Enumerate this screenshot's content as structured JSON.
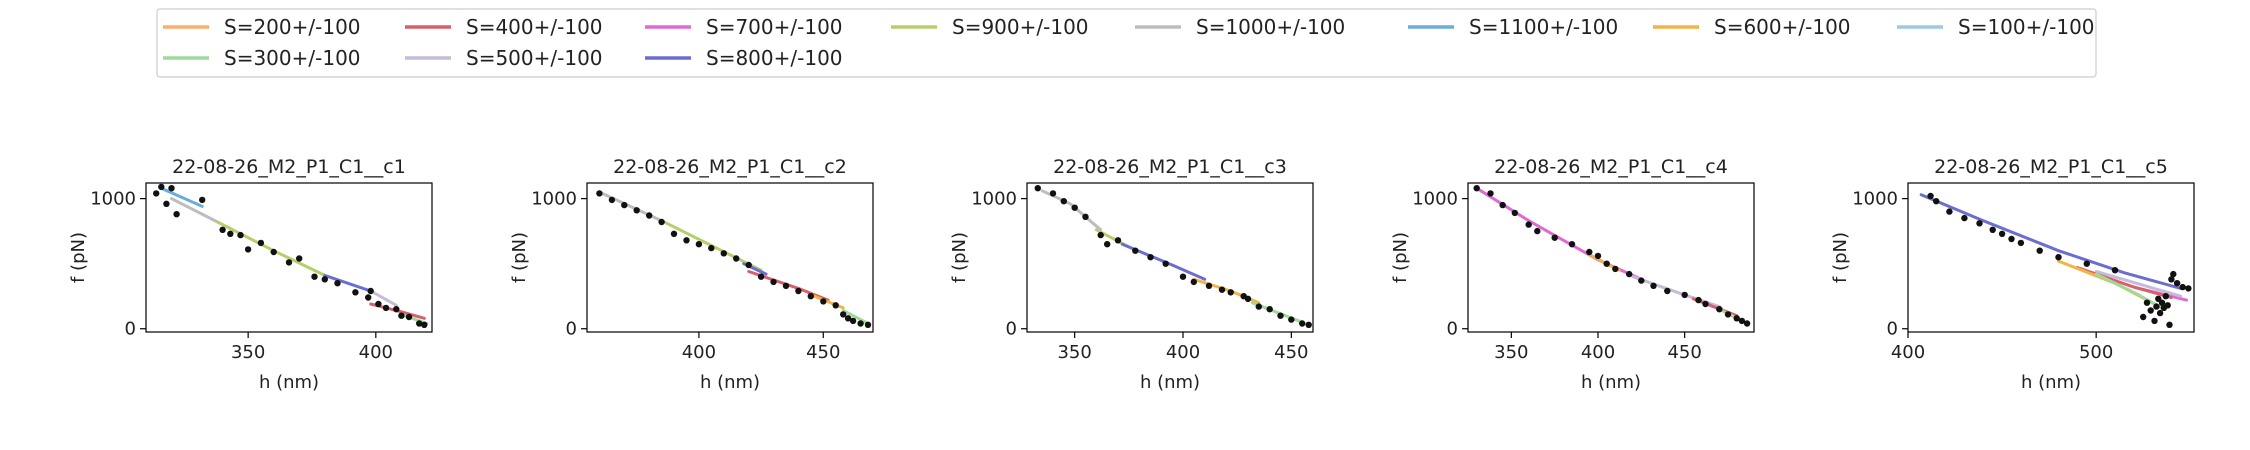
{
  "legend": {
    "entries": [
      {
        "label": "S=200+/-100",
        "color": "#fdae6b"
      },
      {
        "label": "S=400+/-100",
        "color": "#d6616b"
      },
      {
        "label": "S=700+/-100",
        "color": "#de6ad4"
      },
      {
        "label": "S=900+/-100",
        "color": "#b5cf6b"
      },
      {
        "label": "S=1000+/-100",
        "color": "#bdbdbd"
      },
      {
        "label": "S=1100+/-100",
        "color": "#6baed6"
      },
      {
        "label": "S=600+/-100",
        "color": "#f2b447"
      },
      {
        "label": "S=100+/-100",
        "color": "#9ecae1"
      },
      {
        "label": "S=300+/-100",
        "color": "#a1d99b"
      },
      {
        "label": "S=500+/-100",
        "color": "#c6bbd9"
      },
      {
        "label": "S=800+/-100",
        "color": "#6b6ecf"
      }
    ]
  },
  "chart_data": [
    {
      "type": "scatter",
      "title": "22-08-26_M2_P1_C1__c1",
      "xlabel": "h (nm)",
      "ylabel": "f (pN)",
      "xlim": [
        310,
        422
      ],
      "ylim": [
        -25,
        1120
      ],
      "xticks": [
        350,
        400
      ],
      "yticks": [
        0,
        1000
      ],
      "points": [
        [
          314,
          1040
        ],
        [
          316,
          1090
        ],
        [
          318,
          960
        ],
        [
          320,
          1080
        ],
        [
          322,
          880
        ],
        [
          332,
          990
        ],
        [
          340,
          760
        ],
        [
          343,
          730
        ],
        [
          347,
          720
        ],
        [
          350,
          610
        ],
        [
          355,
          660
        ],
        [
          360,
          590
        ],
        [
          366,
          510
        ],
        [
          370,
          540
        ],
        [
          376,
          400
        ],
        [
          380,
          380
        ],
        [
          385,
          350
        ],
        [
          392,
          280
        ],
        [
          397,
          240
        ],
        [
          398,
          290
        ],
        [
          401,
          190
        ],
        [
          404,
          160
        ],
        [
          408,
          150
        ],
        [
          410,
          100
        ],
        [
          413,
          90
        ],
        [
          417,
          40
        ],
        [
          419,
          30
        ]
      ],
      "fits": [
        {
          "name": "S=1100+/-100",
          "color": "#6baed6",
          "points": [
            [
              316,
              1080
            ],
            [
              332,
              940
            ]
          ]
        },
        {
          "name": "S=1000+/-100",
          "color": "#bdbdbd",
          "points": [
            [
              320,
              1000
            ],
            [
              338,
              820
            ]
          ]
        },
        {
          "name": "S=900+/-100",
          "color": "#b5cf6b",
          "points": [
            [
              338,
              820
            ],
            [
              360,
              600
            ],
            [
              380,
              410
            ]
          ]
        },
        {
          "name": "S=800+/-100",
          "color": "#6b6ecf",
          "points": [
            [
              380,
              410
            ],
            [
              398,
              290
            ]
          ]
        },
        {
          "name": "S=500+/-100",
          "color": "#c6bbd9",
          "points": [
            [
              398,
              290
            ],
            [
              408,
              180
            ]
          ]
        },
        {
          "name": "S=400+/-100",
          "color": "#d6616b",
          "points": [
            [
              398,
              190
            ],
            [
              410,
              130
            ],
            [
              419,
              80
            ]
          ]
        },
        {
          "name": "S=300+/-100",
          "color": "#a1d99b",
          "points": [
            [
              410,
              110
            ],
            [
              420,
              40
            ]
          ]
        }
      ]
    },
    {
      "type": "scatter",
      "title": "22-08-26_M2_P1_C1__c2",
      "xlabel": "h (nm)",
      "ylabel": "f (pN)",
      "xlim": [
        355,
        470
      ],
      "ylim": [
        -25,
        1120
      ],
      "xticks": [
        400,
        450
      ],
      "yticks": [
        0,
        1000
      ],
      "points": [
        [
          360,
          1040
        ],
        [
          365,
          990
        ],
        [
          370,
          950
        ],
        [
          375,
          910
        ],
        [
          380,
          870
        ],
        [
          385,
          820
        ],
        [
          390,
          730
        ],
        [
          395,
          680
        ],
        [
          400,
          650
        ],
        [
          405,
          620
        ],
        [
          410,
          580
        ],
        [
          415,
          540
        ],
        [
          420,
          490
        ],
        [
          425,
          400
        ],
        [
          430,
          360
        ],
        [
          435,
          330
        ],
        [
          440,
          290
        ],
        [
          445,
          250
        ],
        [
          450,
          210
        ],
        [
          455,
          180
        ],
        [
          458,
          110
        ],
        [
          460,
          80
        ],
        [
          462,
          60
        ],
        [
          465,
          40
        ],
        [
          468,
          30
        ]
      ],
      "fits": [
        {
          "name": "S=1000+/-100",
          "color": "#bdbdbd",
          "points": [
            [
              360,
              1050
            ],
            [
              385,
              830
            ]
          ]
        },
        {
          "name": "S=900+/-100",
          "color": "#b5cf6b",
          "points": [
            [
              385,
              830
            ],
            [
              405,
              640
            ],
            [
              425,
              450
            ]
          ]
        },
        {
          "name": "S=800+/-100",
          "color": "#6b6ecf",
          "points": [
            [
              418,
              500
            ],
            [
              427,
              420
            ]
          ]
        },
        {
          "name": "S=400+/-100",
          "color": "#d6616b",
          "points": [
            [
              420,
              440
            ],
            [
              440,
              310
            ],
            [
              452,
              220
            ]
          ]
        },
        {
          "name": "S=600+/-100",
          "color": "#f2b447",
          "points": [
            [
              445,
              260
            ],
            [
              458,
              160
            ]
          ]
        },
        {
          "name": "S=300+/-100",
          "color": "#a1d99b",
          "points": [
            [
              458,
              140
            ],
            [
              468,
              40
            ]
          ]
        }
      ]
    },
    {
      "type": "scatter",
      "title": "22-08-26_M2_P1_C1__c3",
      "xlabel": "h (nm)",
      "ylabel": "f (pN)",
      "xlim": [
        328,
        460
      ],
      "ylim": [
        -25,
        1120
      ],
      "xticks": [
        350,
        400,
        450
      ],
      "yticks": [
        0,
        1000
      ],
      "points": [
        [
          333,
          1080
        ],
        [
          340,
          1040
        ],
        [
          345,
          980
        ],
        [
          350,
          930
        ],
        [
          355,
          860
        ],
        [
          362,
          720
        ],
        [
          365,
          650
        ],
        [
          370,
          680
        ],
        [
          378,
          600
        ],
        [
          385,
          550
        ],
        [
          392,
          500
        ],
        [
          400,
          400
        ],
        [
          405,
          360
        ],
        [
          412,
          330
        ],
        [
          418,
          300
        ],
        [
          422,
          280
        ],
        [
          428,
          250
        ],
        [
          430,
          230
        ],
        [
          435,
          170
        ],
        [
          440,
          150
        ],
        [
          445,
          100
        ],
        [
          450,
          70
        ],
        [
          455,
          40
        ],
        [
          458,
          30
        ]
      ],
      "fits": [
        {
          "name": "S=1000+/-100",
          "color": "#bdbdbd",
          "points": [
            [
              335,
              1060
            ],
            [
              348,
              960
            ],
            [
              362,
              760
            ]
          ]
        },
        {
          "name": "S=900+/-100",
          "color": "#b5cf6b",
          "points": [
            [
              360,
              760
            ],
            [
              375,
              630
            ]
          ]
        },
        {
          "name": "S=800+/-100",
          "color": "#6b6ecf",
          "points": [
            [
              372,
              650
            ],
            [
              395,
              490
            ],
            [
              410,
              380
            ]
          ]
        },
        {
          "name": "S=600+/-100",
          "color": "#f2b447",
          "points": [
            [
              405,
              380
            ],
            [
              422,
              290
            ],
            [
              435,
              200
            ]
          ]
        },
        {
          "name": "S=300+/-100",
          "color": "#a1d99b",
          "points": [
            [
              432,
              200
            ],
            [
              455,
              50
            ]
          ]
        }
      ]
    },
    {
      "type": "scatter",
      "title": "22-08-26_M2_P1_C1__c4",
      "xlabel": "h (nm)",
      "ylabel": "f (pN)",
      "xlim": [
        325,
        490
      ],
      "ylim": [
        -25,
        1120
      ],
      "xticks": [
        350,
        400,
        450
      ],
      "yticks": [
        0,
        1000
      ],
      "points": [
        [
          330,
          1080
        ],
        [
          338,
          1040
        ],
        [
          345,
          950
        ],
        [
          352,
          890
        ],
        [
          360,
          800
        ],
        [
          365,
          750
        ],
        [
          375,
          700
        ],
        [
          385,
          650
        ],
        [
          395,
          590
        ],
        [
          400,
          560
        ],
        [
          405,
          500
        ],
        [
          410,
          460
        ],
        [
          418,
          420
        ],
        [
          425,
          370
        ],
        [
          432,
          330
        ],
        [
          440,
          290
        ],
        [
          450,
          260
        ],
        [
          458,
          220
        ],
        [
          462,
          190
        ],
        [
          470,
          150
        ],
        [
          475,
          110
        ],
        [
          480,
          80
        ],
        [
          483,
          60
        ],
        [
          486,
          40
        ]
      ],
      "fits": [
        {
          "name": "S=700+/-100",
          "color": "#de6ad4",
          "points": [
            [
              330,
              1080
            ],
            [
              360,
              830
            ],
            [
              400,
              530
            ],
            [
              425,
              380
            ]
          ]
        },
        {
          "name": "S=600+/-100",
          "color": "#f2b447",
          "points": [
            [
              395,
              570
            ],
            [
              412,
              450
            ]
          ]
        },
        {
          "name": "S=500+/-100",
          "color": "#c6bbd9",
          "points": [
            [
              420,
              400
            ],
            [
              450,
              260
            ],
            [
              470,
              170
            ]
          ]
        },
        {
          "name": "S=400+/-100",
          "color": "#d6616b",
          "points": [
            [
              455,
              230
            ],
            [
              480,
              100
            ]
          ]
        },
        {
          "name": "S=300+/-100",
          "color": "#a1d99b",
          "points": [
            [
              470,
              150
            ],
            [
              486,
              40
            ]
          ]
        }
      ]
    },
    {
      "type": "scatter",
      "title": "22-08-26_M2_P1_C1__c5",
      "xlabel": "h (nm)",
      "ylabel": "f (pN)",
      "xlim": [
        400,
        552
      ],
      "ylim": [
        -25,
        1120
      ],
      "xticks": [
        400,
        500
      ],
      "yticks": [
        0,
        1000
      ],
      "points": [
        [
          412,
          1020
        ],
        [
          415,
          980
        ],
        [
          422,
          900
        ],
        [
          430,
          850
        ],
        [
          438,
          810
        ],
        [
          445,
          760
        ],
        [
          450,
          730
        ],
        [
          455,
          690
        ],
        [
          460,
          660
        ],
        [
          470,
          600
        ],
        [
          480,
          550
        ],
        [
          495,
          500
        ],
        [
          510,
          450
        ],
        [
          525,
          90
        ],
        [
          527,
          200
        ],
        [
          529,
          140
        ],
        [
          531,
          60
        ],
        [
          532,
          170
        ],
        [
          533,
          230
        ],
        [
          534,
          120
        ],
        [
          535,
          200
        ],
        [
          536,
          160
        ],
        [
          537,
          250
        ],
        [
          538,
          180
        ],
        [
          539,
          30
        ],
        [
          540,
          380
        ],
        [
          541,
          420
        ],
        [
          543,
          350
        ],
        [
          546,
          320
        ],
        [
          549,
          310
        ]
      ],
      "fits": [
        {
          "name": "S=800+/-100",
          "color": "#6b6ecf",
          "points": [
            [
              407,
              1030
            ],
            [
              440,
              830
            ],
            [
              480,
              600
            ],
            [
              515,
              430
            ],
            [
              545,
              310
            ]
          ]
        },
        {
          "name": "S=700+/-100",
          "color": "#de6ad4",
          "points": [
            [
              520,
              320
            ],
            [
              548,
              220
            ]
          ]
        },
        {
          "name": "S=500+/-100",
          "color": "#c6bbd9",
          "points": [
            [
              500,
              440
            ],
            [
              545,
              250
            ]
          ]
        },
        {
          "name": "S=400+/-100",
          "color": "#d6616b",
          "points": [
            [
              490,
              470
            ],
            [
              520,
              320
            ],
            [
              540,
              240
            ]
          ]
        },
        {
          "name": "S=600+/-100",
          "color": "#f2b447",
          "points": [
            [
              480,
              520
            ],
            [
              510,
              350
            ],
            [
              535,
              160
            ]
          ]
        },
        {
          "name": "S=300+/-100",
          "color": "#a1d99b",
          "points": [
            [
              500,
              420
            ],
            [
              520,
              280
            ],
            [
              535,
              160
            ]
          ]
        }
      ]
    }
  ]
}
